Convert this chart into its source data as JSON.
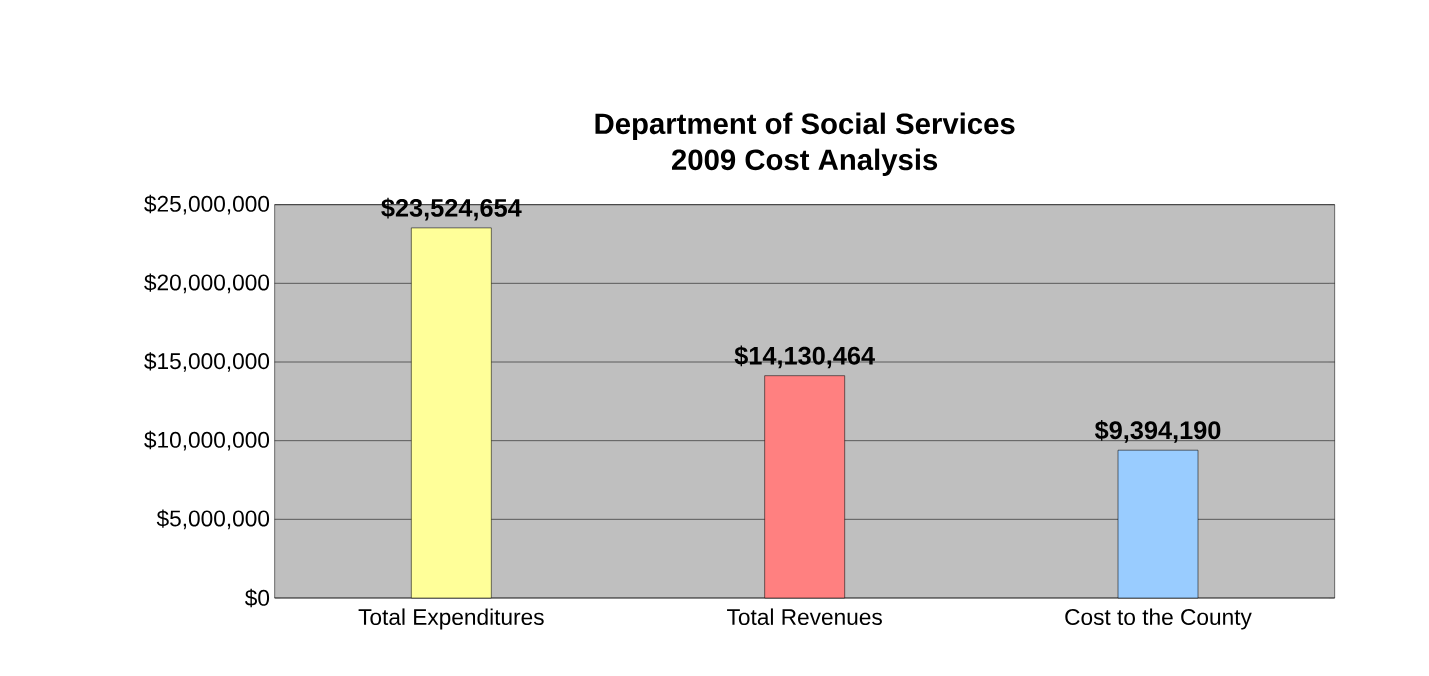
{
  "chart_data": {
    "type": "bar",
    "title": "Department of Social Services",
    "subtitle": "2009 Cost Analysis",
    "categories": [
      "Total Expenditures",
      "Total Revenues",
      "Cost to the County"
    ],
    "values": [
      23524654,
      14130464,
      9394190
    ],
    "colors": [
      "#ffff99",
      "#ff8080",
      "#99ccff"
    ],
    "value_labels": [
      "$23,524,654",
      "$14,130,464",
      "$9,394,190"
    ],
    "ylim": [
      0,
      25000000
    ],
    "yticks": [
      {
        "value": 0,
        "label": "$0"
      },
      {
        "value": 5000000,
        "label": "$5,000,000"
      },
      {
        "value": 10000000,
        "label": "$10,000,000"
      },
      {
        "value": 15000000,
        "label": "$15,000,000"
      },
      {
        "value": 20000000,
        "label": "$20,000,000"
      },
      {
        "value": 25000000,
        "label": "$25,000,000"
      }
    ],
    "grid": "y"
  }
}
